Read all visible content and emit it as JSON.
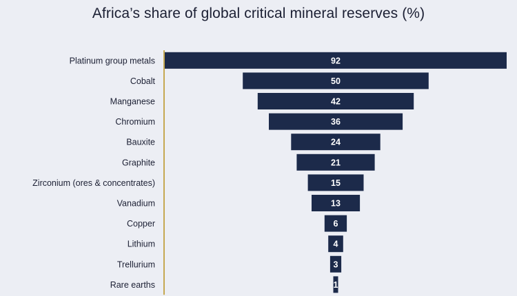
{
  "chart_data": {
    "type": "bar",
    "orientation": "horizontal",
    "title": "Africa’s share of global critical mineral reserves (%)",
    "categories": [
      "Platinum group metals",
      "Cobalt",
      "Manganese",
      "Chromium",
      "Bauxite",
      "Graphite",
      "Zirconium (ores & concentrates)",
      "Vanadium",
      "Copper",
      "Lithium",
      "Trellurium",
      "Rare earths"
    ],
    "values": [
      92,
      50,
      42,
      36,
      24,
      21,
      15,
      13,
      6,
      4,
      3,
      1
    ],
    "xlim": [
      0,
      92
    ],
    "bar_alignment": "centered",
    "data_labels": "inside-bar",
    "grid": false,
    "legend": "none"
  },
  "colors": {
    "background": "#eceef4",
    "bar": "#1c2a4a",
    "title": "#1b1f33",
    "label": "#1b1f33",
    "value_label": "#ffffff",
    "axis": "#b8901a"
  }
}
